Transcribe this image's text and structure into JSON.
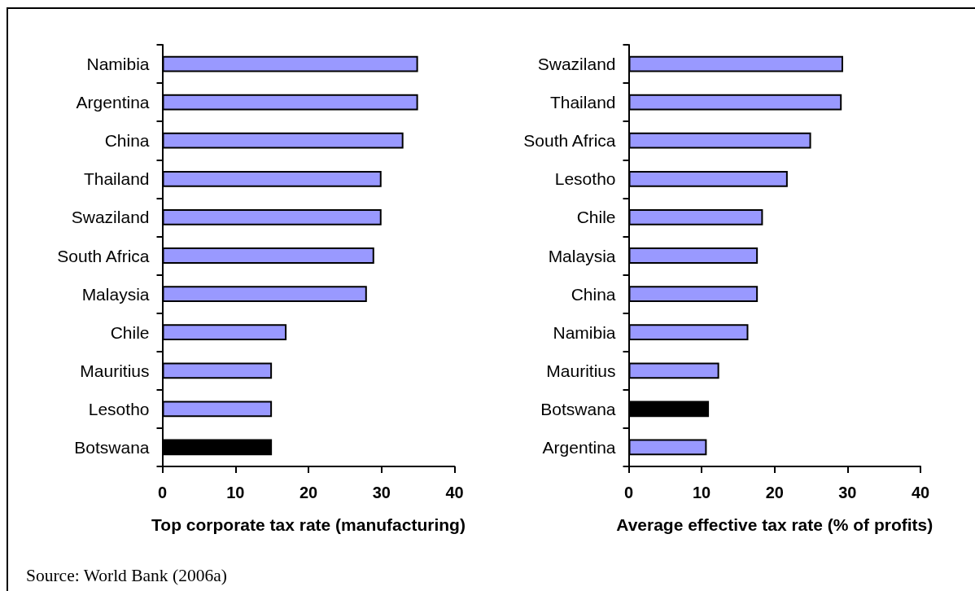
{
  "chart_data": [
    {
      "type": "bar",
      "orientation": "horizontal",
      "categories": [
        "Namibia",
        "Argentina",
        "China",
        "Thailand",
        "Swaziland",
        "South Africa",
        "Malaysia",
        "Chile",
        "Mauritius",
        "Lesotho",
        "Botswana"
      ],
      "values": [
        35,
        35,
        33,
        30,
        30,
        29,
        28,
        17,
        15,
        15,
        15
      ],
      "colors": [
        "#9999ff",
        "#9999ff",
        "#9999ff",
        "#9999ff",
        "#9999ff",
        "#9999ff",
        "#9999ff",
        "#9999ff",
        "#9999ff",
        "#9999ff",
        "#000000"
      ],
      "xlim": [
        0,
        40
      ],
      "xticks": [
        0,
        10,
        20,
        30,
        40
      ],
      "xlabel": "Top corporate tax rate (manufacturing)",
      "annotations": [
        "Source: World Bank (2006a)"
      ]
    },
    {
      "type": "bar",
      "orientation": "horizontal",
      "categories": [
        "Swaziland",
        "Thailand",
        "South Africa",
        "Lesotho",
        "Chile",
        "Malaysia",
        "China",
        "Namibia",
        "Mauritius",
        "Botswana",
        "Argentina"
      ],
      "values": [
        29.4,
        29.2,
        25,
        21.8,
        18.4,
        17.7,
        17.7,
        16.4,
        12.4,
        11,
        10.7
      ],
      "colors": [
        "#9999ff",
        "#9999ff",
        "#9999ff",
        "#9999ff",
        "#9999ff",
        "#9999ff",
        "#9999ff",
        "#9999ff",
        "#9999ff",
        "#000000",
        "#9999ff"
      ],
      "xlim": [
        0,
        40
      ],
      "xticks": [
        0,
        10,
        20,
        30,
        40
      ],
      "xlabel": "Average effective tax rate (% of profits)"
    }
  ]
}
